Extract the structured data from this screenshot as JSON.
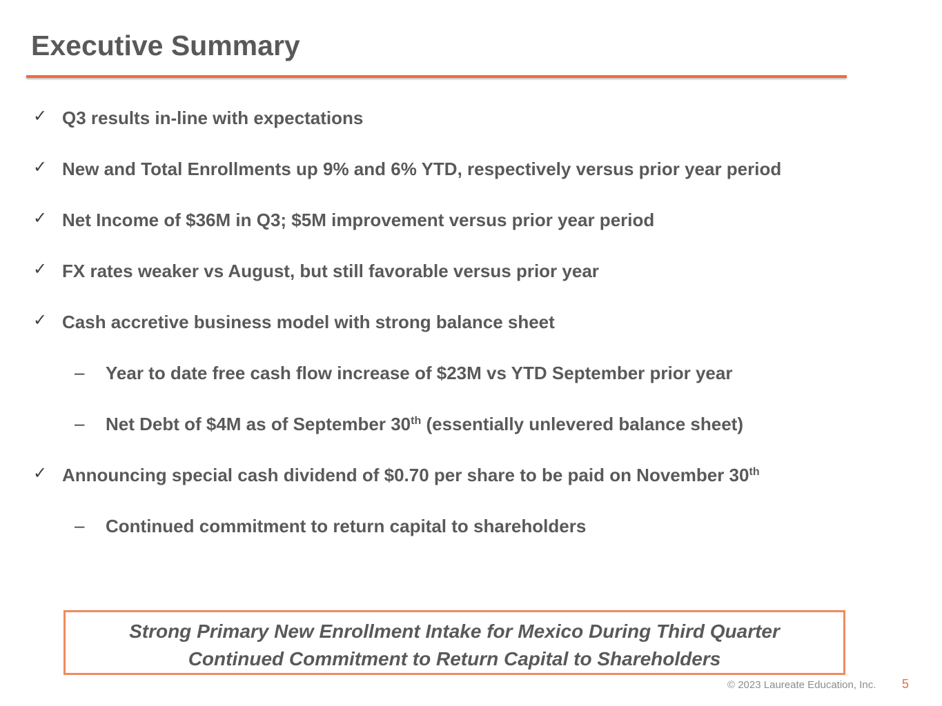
{
  "slide": {
    "title": "Executive Summary",
    "bullets": [
      {
        "marker": "✓",
        "text": "Q3 results in-line with expectations"
      },
      {
        "marker": "✓",
        "text": "New and Total Enrollments up 9% and 6% YTD, respectively versus prior year period"
      },
      {
        "marker": "✓",
        "text": "Net Income of $36M in Q3; $5M improvement versus prior year period"
      },
      {
        "marker": "✓",
        "text": "FX rates weaker vs August, but still favorable versus prior year"
      },
      {
        "marker": "✓",
        "text": "Cash accretive business model with strong balance sheet"
      },
      {
        "marker": "–",
        "text": "Year to date free cash flow increase of $23M vs YTD September prior year"
      },
      {
        "marker": "–",
        "text_before": "Net Debt of $4M as of September 30",
        "sup": "th",
        "text_after": " (essentially unlevered balance sheet)"
      },
      {
        "marker": "✓",
        "text_before": "Announcing special cash dividend of $0.70 per share to be paid on November 30",
        "sup": "th"
      },
      {
        "marker": "–",
        "text": "Continued commitment to return capital to shareholders"
      }
    ],
    "callout": {
      "line1": "Strong Primary New Enrollment Intake for Mexico During Third Quarter",
      "line2": "Continued Commitment to Return Capital to Shareholders"
    },
    "footer": {
      "copyright": "© 2023 Laureate Education, Inc.",
      "page_number": "5"
    },
    "colors": {
      "accent": "#ef6c3d",
      "callout_border": "#f08a5d",
      "text": "#595959"
    }
  }
}
